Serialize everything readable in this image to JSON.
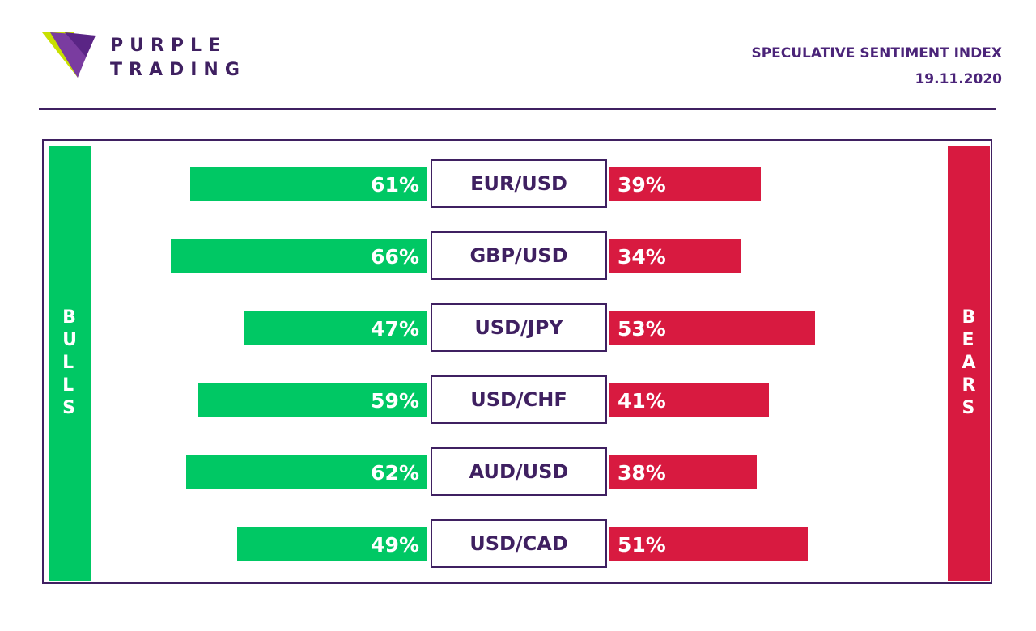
{
  "brand": {
    "line1": "PURPLE",
    "line2": "TRADING"
  },
  "header": {
    "title": "SPECULATIVE SENTIMENT INDEX",
    "date": "19.11.2020"
  },
  "colors": {
    "bull": "#00c864",
    "bear": "#d81a40",
    "brand_purple": "#3f2061"
  },
  "chart_data": {
    "type": "bar",
    "orientation": "horizontal-diverging",
    "left_label": "BULLS",
    "right_label": "BEARS",
    "categories": [
      "EUR/USD",
      "GBP/USD",
      "USD/JPY",
      "USD/CHF",
      "AUD/USD",
      "USD/CAD"
    ],
    "series": [
      {
        "name": "BULLS",
        "values": [
          61,
          66,
          47,
          59,
          62,
          49
        ],
        "labels": [
          "61%",
          "66%",
          "47%",
          "59%",
          "62%",
          "49%"
        ]
      },
      {
        "name": "BEARS",
        "values": [
          39,
          34,
          53,
          41,
          38,
          51
        ],
        "labels": [
          "39%",
          "34%",
          "53%",
          "41%",
          "38%",
          "51%"
        ]
      }
    ],
    "unit": "%"
  }
}
